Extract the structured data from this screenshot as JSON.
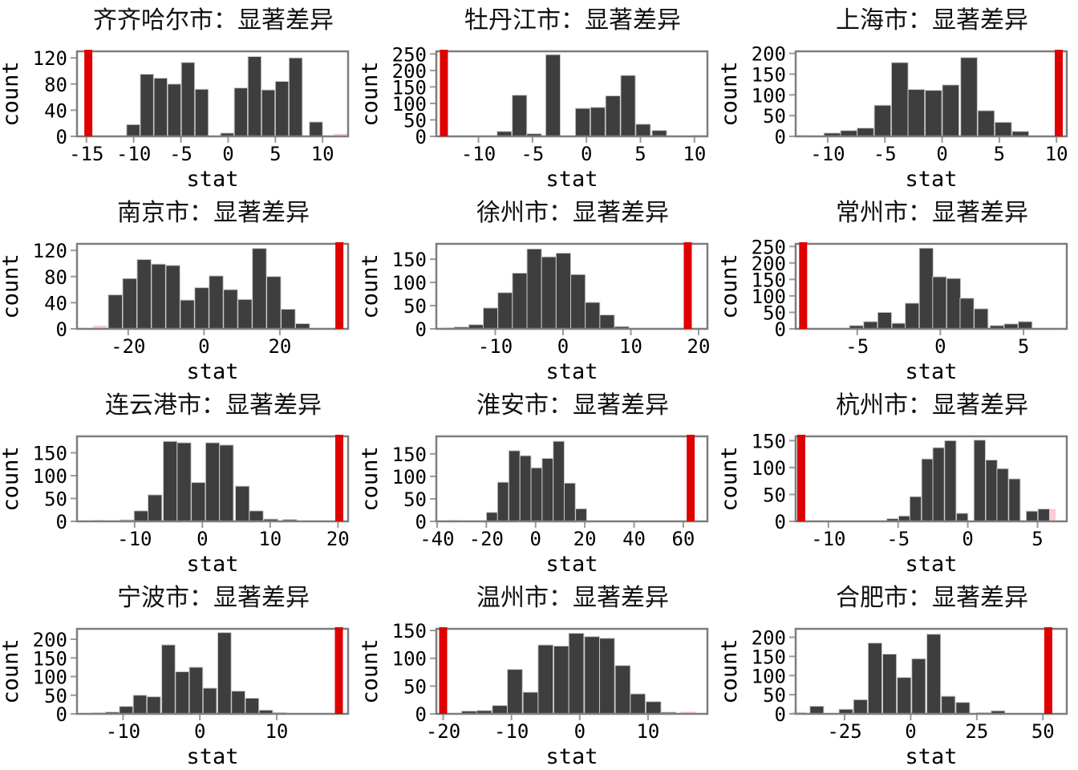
{
  "figure": {
    "xlabel": "stat",
    "ylabel": "count",
    "colors": {
      "bar": "#3e3e3e",
      "bar_edge": "#c9c9c9",
      "red": "#df0000",
      "pink": "#ffccd5",
      "border": "#7d7d7d",
      "tick": "#9a9a9a",
      "text": "#000000"
    }
  },
  "chart_data": [
    {
      "type": "bar",
      "title": "齐齐哈尔市：显著差异",
      "xlabel": "stat",
      "ylabel": "count",
      "xlim": [
        -16,
        12.7
      ],
      "ylim": [
        0,
        130
      ],
      "xticks": [
        -15,
        -10,
        -5,
        0,
        5,
        10
      ],
      "yticks": [
        0,
        40,
        80,
        120
      ],
      "bin_width": 1.4,
      "observed_stat_x": -14.8,
      "bars": [
        [
          -10.05,
          18
        ],
        [
          -8.6,
          95
        ],
        [
          -7.15,
          89
        ],
        [
          -5.7,
          80
        ],
        [
          -4.25,
          113
        ],
        [
          -2.8,
          72
        ],
        [
          -0.1,
          5
        ],
        [
          1.35,
          74
        ],
        [
          2.8,
          122
        ],
        [
          4.25,
          71
        ],
        [
          5.7,
          84
        ],
        [
          7.15,
          120
        ],
        [
          9.3,
          22
        ]
      ],
      "pink_bars": [
        [
          11.9,
          4
        ]
      ]
    },
    {
      "type": "bar",
      "title": "牡丹江市：显著差异",
      "xlabel": "stat",
      "ylabel": "count",
      "xlim": [
        -13.9,
        11.2
      ],
      "ylim": [
        0,
        258
      ],
      "xticks": [
        -10,
        -5,
        0,
        5,
        10
      ],
      "yticks": [
        0,
        50,
        100,
        150,
        200,
        250
      ],
      "bin_width": 1.35,
      "observed_stat_x": -13.2,
      "bars": [
        [
          -7.6,
          15
        ],
        [
          -6.2,
          125
        ],
        [
          -4.85,
          8
        ],
        [
          -3.1,
          248
        ],
        [
          -0.35,
          85
        ],
        [
          1.05,
          88
        ],
        [
          2.45,
          123
        ],
        [
          3.85,
          185
        ],
        [
          5.25,
          37
        ],
        [
          6.75,
          18
        ]
      ],
      "pink_bars": [
        [
          -8.9,
          3
        ],
        [
          10.4,
          4
        ]
      ]
    },
    {
      "type": "bar",
      "title": "上海市：显著差异",
      "xlabel": "stat",
      "ylabel": "count",
      "xlim": [
        -12.8,
        10.9
      ],
      "ylim": [
        0,
        205
      ],
      "xticks": [
        -10,
        -5,
        0,
        5,
        10
      ],
      "yticks": [
        0,
        50,
        100,
        150,
        200
      ],
      "bin_width": 1.45,
      "observed_stat_x": 10.2,
      "bars": [
        [
          -9.6,
          8
        ],
        [
          -8.15,
          14
        ],
        [
          -6.7,
          20
        ],
        [
          -5.2,
          75
        ],
        [
          -3.7,
          178
        ],
        [
          -2.25,
          113
        ],
        [
          -0.75,
          111
        ],
        [
          0.75,
          124
        ],
        [
          2.35,
          190
        ],
        [
          3.85,
          62
        ],
        [
          5.35,
          34
        ],
        [
          6.85,
          12
        ]
      ],
      "pink_bars": [
        [
          -12.2,
          3
        ]
      ]
    },
    {
      "type": "bar",
      "title": "南京市：显著差异",
      "xlabel": "stat",
      "ylabel": "count",
      "xlim": [
        -33.5,
        38
      ],
      "ylim": [
        0,
        130
      ],
      "xticks": [
        -20,
        0,
        20
      ],
      "yticks": [
        0,
        40,
        80,
        120
      ],
      "bin_width": 3.7,
      "observed_stat_x": 35.7,
      "bars": [
        [
          -23.4,
          52
        ],
        [
          -19.6,
          77
        ],
        [
          -15.8,
          106
        ],
        [
          -12,
          99
        ],
        [
          -8.2,
          97
        ],
        [
          -4.4,
          44
        ],
        [
          -0.6,
          63
        ],
        [
          3.2,
          81
        ],
        [
          7,
          60
        ],
        [
          10.8,
          45
        ],
        [
          14.6,
          123
        ],
        [
          18.4,
          80
        ],
        [
          22.2,
          30
        ],
        [
          26,
          8
        ]
      ],
      "pink_bars": [
        [
          -27.5,
          5
        ]
      ]
    },
    {
      "type": "bar",
      "title": "徐州市：显著差异",
      "xlabel": "stat",
      "ylabel": "count",
      "xlim": [
        -18.7,
        21.3
      ],
      "ylim": [
        0,
        183
      ],
      "xticks": [
        -10,
        0,
        10,
        20
      ],
      "yticks": [
        0,
        50,
        100,
        150
      ],
      "bin_width": 2.15,
      "observed_stat_x": 18.4,
      "bars": [
        [
          -15,
          4
        ],
        [
          -12.85,
          9
        ],
        [
          -10.7,
          45
        ],
        [
          -8.55,
          78
        ],
        [
          -6.4,
          120
        ],
        [
          -4.25,
          172
        ],
        [
          -2.1,
          155
        ],
        [
          0.05,
          163
        ],
        [
          2.2,
          117
        ],
        [
          4.35,
          57
        ],
        [
          6.5,
          30
        ],
        [
          8.65,
          5
        ]
      ],
      "pink_bars": [
        [
          -16.8,
          3
        ]
      ]
    },
    {
      "type": "bar",
      "title": "常州市：显著差异",
      "xlabel": "stat",
      "ylabel": "count",
      "xlim": [
        -8.7,
        7.6
      ],
      "ylim": [
        0,
        258
      ],
      "xticks": [
        -5,
        0,
        5
      ],
      "yticks": [
        0,
        50,
        100,
        150,
        200,
        250
      ],
      "bin_width": 0.83,
      "observed_stat_x": -8.25,
      "bars": [
        [
          -5.05,
          10
        ],
        [
          -4.2,
          22
        ],
        [
          -3.35,
          50
        ],
        [
          -2.5,
          17
        ],
        [
          -1.7,
          78
        ],
        [
          -0.85,
          245
        ],
        [
          -0.05,
          158
        ],
        [
          0.8,
          153
        ],
        [
          1.6,
          93
        ],
        [
          2.45,
          61
        ],
        [
          3.4,
          10
        ],
        [
          4.25,
          15
        ],
        [
          5.1,
          22
        ]
      ],
      "pink_bars": [
        [
          6.3,
          3
        ]
      ]
    },
    {
      "type": "bar",
      "title": "连云港市：显著差异",
      "xlabel": "stat",
      "ylabel": "count",
      "xlim": [
        -18.5,
        21.5
      ],
      "ylim": [
        0,
        186
      ],
      "xticks": [
        -10,
        0,
        10,
        20
      ],
      "yticks": [
        0,
        50,
        100,
        150
      ],
      "bin_width": 2.05,
      "observed_stat_x": 20.2,
      "bars": [
        [
          -11.1,
          3
        ],
        [
          -9.05,
          23
        ],
        [
          -7,
          58
        ],
        [
          -4.75,
          175
        ],
        [
          -2.7,
          172
        ],
        [
          -0.6,
          85
        ],
        [
          1.5,
          172
        ],
        [
          3.55,
          167
        ],
        [
          5.9,
          77
        ],
        [
          7.95,
          23
        ],
        [
          10.1,
          5
        ],
        [
          12.9,
          4
        ]
      ],
      "pink_bars": [
        [
          -15.2,
          3
        ]
      ]
    },
    {
      "type": "bar",
      "title": "淮安市：显著差异",
      "xlabel": "stat",
      "ylabel": "count",
      "xlim": [
        -40.3,
        69.8
      ],
      "ylim": [
        0,
        189
      ],
      "xticks": [
        -40,
        -20,
        0,
        20,
        40,
        60
      ],
      "yticks": [
        0,
        50,
        100,
        150
      ],
      "bin_width": 4.5,
      "observed_stat_x": 63,
      "bars": [
        [
          -17.7,
          20
        ],
        [
          -13.2,
          87
        ],
        [
          -8.6,
          157
        ],
        [
          -4.1,
          146
        ],
        [
          0.4,
          119
        ],
        [
          4.9,
          140
        ],
        [
          9.4,
          178
        ],
        [
          13.9,
          85
        ],
        [
          18.5,
          28
        ]
      ],
      "pink_bars": [
        [
          -33,
          3
        ]
      ]
    },
    {
      "type": "bar",
      "title": "杭州市：显著差异",
      "xlabel": "stat",
      "ylabel": "count",
      "xlim": [
        -12.35,
        7.1
      ],
      "ylim": [
        0,
        158
      ],
      "xticks": [
        -10,
        -5,
        0,
        5
      ],
      "yticks": [
        0,
        50,
        100,
        150
      ],
      "bin_width": 0.82,
      "observed_stat_x": -11.95,
      "bars": [
        [
          -5.4,
          5
        ],
        [
          -4.55,
          10
        ],
        [
          -3.75,
          46
        ],
        [
          -2.9,
          116
        ],
        [
          -2.1,
          137
        ],
        [
          -1.25,
          150
        ],
        [
          -0.4,
          15
        ],
        [
          0.85,
          151
        ],
        [
          1.7,
          114
        ],
        [
          2.5,
          98
        ],
        [
          3.35,
          79
        ],
        [
          4.6,
          19
        ],
        [
          5.45,
          23
        ]
      ],
      "pink_bars": [
        [
          5.9,
          23
        ]
      ]
    },
    {
      "type": "bar",
      "title": "宁波市：显著差异",
      "xlabel": "stat",
      "ylabel": "count",
      "xlim": [
        -16,
        19.3
      ],
      "ylim": [
        0,
        228
      ],
      "xticks": [
        -10,
        0,
        10
      ],
      "yticks": [
        0,
        50,
        100,
        150,
        200
      ],
      "bin_width": 1.75,
      "observed_stat_x": 18.1,
      "bars": [
        [
          -11.4,
          5
        ],
        [
          -9.6,
          20
        ],
        [
          -7.8,
          50
        ],
        [
          -6,
          46
        ],
        [
          -4.1,
          185
        ],
        [
          -2.3,
          113
        ],
        [
          -0.5,
          125
        ],
        [
          1.3,
          69
        ],
        [
          3.2,
          218
        ],
        [
          5,
          61
        ],
        [
          6.8,
          42
        ],
        [
          8.6,
          10
        ],
        [
          10.4,
          3
        ]
      ],
      "pink_bars": [
        [
          -13.2,
          4
        ]
      ]
    },
    {
      "type": "bar",
      "title": "温州市：显著差异",
      "xlabel": "stat",
      "ylabel": "count",
      "xlim": [
        -21,
        18.7
      ],
      "ylim": [
        0,
        153
      ],
      "xticks": [
        -20,
        -10,
        0,
        10
      ],
      "yticks": [
        0,
        50,
        100,
        150
      ],
      "bin_width": 2.2,
      "observed_stat_x": -20,
      "bars": [
        [
          -16.2,
          5
        ],
        [
          -14,
          6
        ],
        [
          -11.7,
          15
        ],
        [
          -9.5,
          80
        ],
        [
          -7.2,
          39
        ],
        [
          -5,
          124
        ],
        [
          -2.7,
          122
        ],
        [
          -0.5,
          145
        ],
        [
          1.8,
          139
        ],
        [
          4,
          136
        ],
        [
          6.3,
          87
        ],
        [
          8.5,
          36
        ],
        [
          10.8,
          22
        ],
        [
          13,
          3
        ]
      ],
      "pink_bars": [
        [
          15.9,
          4
        ]
      ]
    },
    {
      "type": "bar",
      "title": "合肥市：显著差异",
      "xlabel": "stat",
      "ylabel": "count",
      "xlim": [
        -43.5,
        59
      ],
      "ylim": [
        0,
        222
      ],
      "xticks": [
        -25,
        0,
        25,
        50
      ],
      "yticks": [
        0,
        50,
        100,
        150,
        200
      ],
      "bin_width": 5.2,
      "observed_stat_x": 52,
      "bars": [
        [
          -35.5,
          20
        ],
        [
          -24.5,
          12
        ],
        [
          -19,
          37
        ],
        [
          -13.5,
          185
        ],
        [
          -8,
          156
        ],
        [
          -2.5,
          95
        ],
        [
          3,
          144
        ],
        [
          8.7,
          208
        ],
        [
          14.2,
          46
        ],
        [
          19.7,
          30
        ],
        [
          27.5,
          3
        ],
        [
          33,
          8
        ]
      ],
      "pink_bars": [
        [
          -42.5,
          5
        ]
      ]
    }
  ]
}
